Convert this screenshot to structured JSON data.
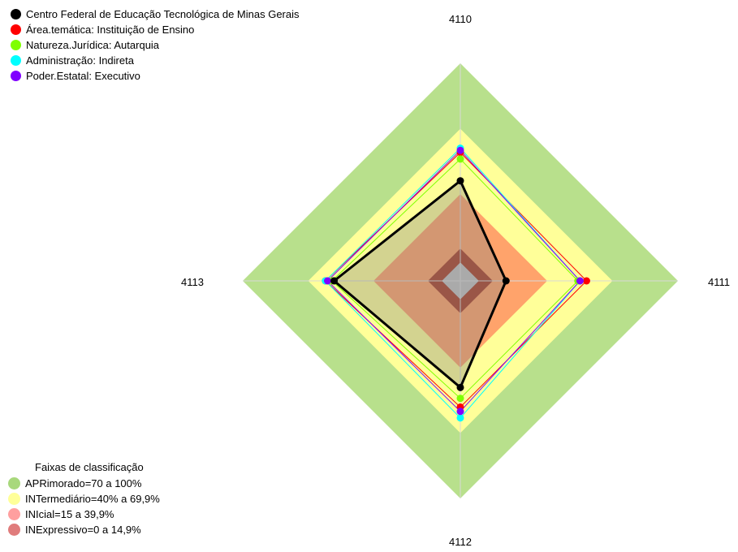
{
  "chart_data": {
    "type": "radar",
    "axes": [
      "4110",
      "4111",
      "4112",
      "4113"
    ],
    "rmax": 100,
    "series": [
      {
        "name": "Centro Federal de Educação Tecnológica de Minas Gerais",
        "color": "#000000",
        "values": [
          46,
          21,
          49,
          58
        ],
        "line": true
      },
      {
        "name": "Área.temática: Instituição de Ensino",
        "color": "#ff0000",
        "values": [
          59,
          58,
          58,
          62
        ]
      },
      {
        "name": "Natureza.Jurídica: Autarquia",
        "color": "#7fff00",
        "values": [
          56,
          54,
          54,
          59
        ]
      },
      {
        "name": "Administração: Indireta",
        "color": "#00ffff",
        "values": [
          61,
          55,
          63,
          62
        ]
      },
      {
        "name": "Poder.Estatal: Executivo",
        "color": "#8000ff",
        "values": [
          60,
          55,
          60,
          61
        ]
      }
    ],
    "bands": {
      "title": "Faixas de classificação",
      "items": [
        {
          "label": "APRimorado=70 a 100%",
          "from": 70,
          "to": 100,
          "fill": "#b8e08c",
          "dot": "#a8d87c"
        },
        {
          "label": "INTermediário=40% a 69,9%",
          "from": 40,
          "to": 69.9,
          "fill": "#ffff99",
          "dot": "#ffff99"
        },
        {
          "label": "INIcial=15 a 39,9%",
          "from": 15,
          "to": 39.9,
          "fill": "#ffa36b",
          "dot": "#ff9f9f"
        },
        {
          "label": "INExpressivo=0 a 14,9%",
          "from": 0,
          "to": 14.9,
          "fill": "#a84028",
          "dot": "#e07c7c"
        }
      ]
    }
  }
}
